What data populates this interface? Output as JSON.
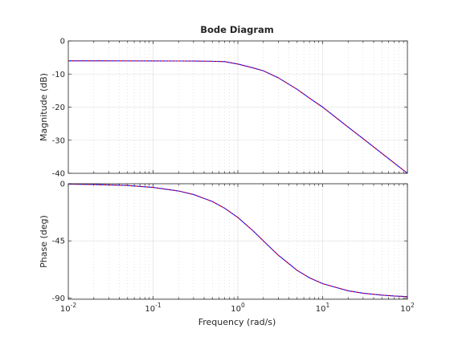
{
  "chart_data": {
    "type": "line",
    "title": "Bode Diagram",
    "xlabel": "Frequency  (rad/s)",
    "xscale": "log",
    "xlim": [
      0.01,
      100
    ],
    "x_tick_labels": [
      {
        "base": "10",
        "exp": "-2"
      },
      {
        "base": "10",
        "exp": "-1"
      },
      {
        "base": "10",
        "exp": "0"
      },
      {
        "base": "10",
        "exp": "1"
      },
      {
        "base": "10",
        "exp": "2"
      }
    ],
    "x_tick_values": [
      0.01,
      0.1,
      1,
      10,
      100
    ],
    "grid": true,
    "line_colors": [
      "#0000ff",
      "#ff0000"
    ],
    "subplots": [
      {
        "name": "magnitude",
        "ylabel": "Magnitude (dB)",
        "ylim": [
          -40,
          0
        ],
        "y_ticks": [
          0,
          -10,
          -20,
          -30,
          -40
        ],
        "y_tick_labels": [
          "0",
          "-10",
          "-20",
          "-30",
          "-40"
        ],
        "series": [
          {
            "x": [
              0.01,
              0.02,
              0.05,
              0.1,
              0.2,
              0.3,
              0.5,
              0.7,
              1,
              1.5,
              2,
              3,
              5,
              7,
              10,
              20,
              30,
              50,
              70,
              100
            ],
            "y": [
              -6.02,
              -6.02,
              -6.03,
              -6.04,
              -6.06,
              -6.08,
              -6.15,
              -6.25,
              -6.99,
              -8.13,
              -9.03,
              -11.14,
              -14.62,
              -17.3,
              -20.0,
              -26.04,
              -29.54,
              -33.98,
              -36.9,
              -40.0
            ]
          },
          {
            "x": [
              0.01,
              0.02,
              0.05,
              0.1,
              0.2,
              0.3,
              0.5,
              0.7,
              1,
              1.5,
              2,
              3,
              5,
              7,
              10,
              20,
              30,
              50,
              70,
              100
            ],
            "y": [
              -6.02,
              -6.02,
              -6.03,
              -6.04,
              -6.06,
              -6.08,
              -6.15,
              -6.25,
              -6.99,
              -8.13,
              -9.03,
              -11.14,
              -14.62,
              -17.3,
              -20.0,
              -26.04,
              -29.54,
              -33.98,
              -36.9,
              -40.0
            ]
          }
        ]
      },
      {
        "name": "phase",
        "ylabel": "Phase (deg)",
        "ylim": [
          -91,
          0
        ],
        "y_ticks": [
          0,
          -45,
          -90
        ],
        "y_tick_labels": [
          "0",
          "-45",
          "-90"
        ],
        "series": [
          {
            "x": [
              0.01,
              0.02,
              0.05,
              0.1,
              0.2,
              0.3,
              0.5,
              0.7,
              1,
              1.5,
              2,
              3,
              5,
              7,
              10,
              20,
              30,
              50,
              70,
              100
            ],
            "y": [
              -0.3,
              -0.6,
              -1.4,
              -2.9,
              -5.7,
              -8.5,
              -14.0,
              -19.3,
              -26.6,
              -36.9,
              -45.0,
              -56.3,
              -68.2,
              -74.1,
              -78.7,
              -84.3,
              -86.2,
              -87.7,
              -88.4,
              -88.9
            ]
          },
          {
            "x": [
              0.01,
              0.02,
              0.05,
              0.1,
              0.2,
              0.3,
              0.5,
              0.7,
              1,
              1.5,
              2,
              3,
              5,
              7,
              10,
              20,
              30,
              50,
              70,
              100
            ],
            "y": [
              -0.3,
              -0.6,
              -1.4,
              -2.9,
              -5.7,
              -8.5,
              -14.0,
              -19.3,
              -26.6,
              -36.9,
              -45.0,
              -56.3,
              -68.2,
              -74.1,
              -78.7,
              -84.3,
              -86.2,
              -87.7,
              -88.4,
              -88.9
            ]
          }
        ]
      }
    ]
  }
}
